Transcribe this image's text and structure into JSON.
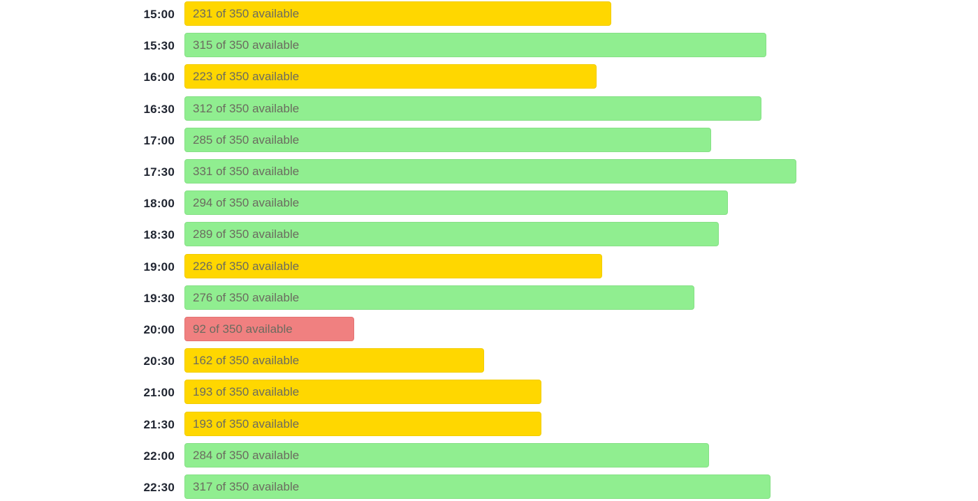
{
  "availability": {
    "capacity": 350,
    "colors": {
      "high": "#90ee90",
      "medium": "#ffd700",
      "low": "#f08080"
    },
    "slots": [
      {
        "time": "15:00",
        "available": 231,
        "label": "231 of 350 available",
        "status": "medium"
      },
      {
        "time": "15:30",
        "available": 315,
        "label": "315 of 350 available",
        "status": "high"
      },
      {
        "time": "16:00",
        "available": 223,
        "label": "223 of 350 available",
        "status": "medium"
      },
      {
        "time": "16:30",
        "available": 312,
        "label": "312 of 350 available",
        "status": "high"
      },
      {
        "time": "17:00",
        "available": 285,
        "label": "285 of 350 available",
        "status": "high"
      },
      {
        "time": "17:30",
        "available": 331,
        "label": "331 of 350 available",
        "status": "high"
      },
      {
        "time": "18:00",
        "available": 294,
        "label": "294 of 350 available",
        "status": "high"
      },
      {
        "time": "18:30",
        "available": 289,
        "label": "289 of 350 available",
        "status": "high"
      },
      {
        "time": "19:00",
        "available": 226,
        "label": "226 of 350 available",
        "status": "medium"
      },
      {
        "time": "19:30",
        "available": 276,
        "label": "276 of 350 available",
        "status": "high"
      },
      {
        "time": "20:00",
        "available": 92,
        "label": "92 of 350 available",
        "status": "low"
      },
      {
        "time": "20:30",
        "available": 162,
        "label": "162 of 350 available",
        "status": "medium"
      },
      {
        "time": "21:00",
        "available": 193,
        "label": "193 of 350 available",
        "status": "medium"
      },
      {
        "time": "21:30",
        "available": 193,
        "label": "193 of 350 available",
        "status": "medium"
      },
      {
        "time": "22:00",
        "available": 284,
        "label": "284 of 350 available",
        "status": "high"
      },
      {
        "time": "22:30",
        "available": 317,
        "label": "317 of 350 available",
        "status": "high"
      }
    ]
  }
}
